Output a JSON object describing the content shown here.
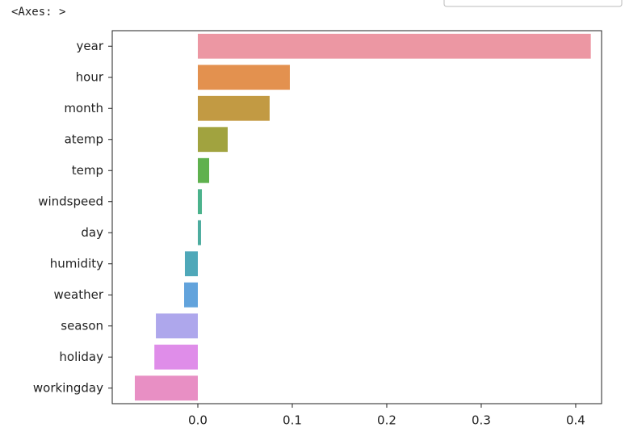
{
  "output_text": "<Axes: >",
  "chart_data": {
    "type": "barh",
    "categories": [
      "year",
      "hour",
      "month",
      "atemp",
      "temp",
      "windspeed",
      "day",
      "humidity",
      "weather",
      "season",
      "holiday",
      "workingday"
    ],
    "values": [
      0.416,
      0.0974,
      0.076,
      0.0316,
      0.012,
      0.0043,
      0.0034,
      -0.0137,
      -0.0145,
      -0.0444,
      -0.046,
      -0.0667
    ],
    "colors": [
      "#ec97a3",
      "#e3914f",
      "#c29a43",
      "#a1a33f",
      "#5fb14e",
      "#4bb28c",
      "#4dac9f",
      "#4fa8b9",
      "#62a3dc",
      "#aea7ec",
      "#df8de9",
      "#e88fc4"
    ],
    "xlim": [
      -0.0906,
      0.4274
    ],
    "xticks": [
      {
        "value": 0,
        "label": "0.0"
      },
      0.1,
      0.2,
      0.3,
      0.4
    ]
  }
}
